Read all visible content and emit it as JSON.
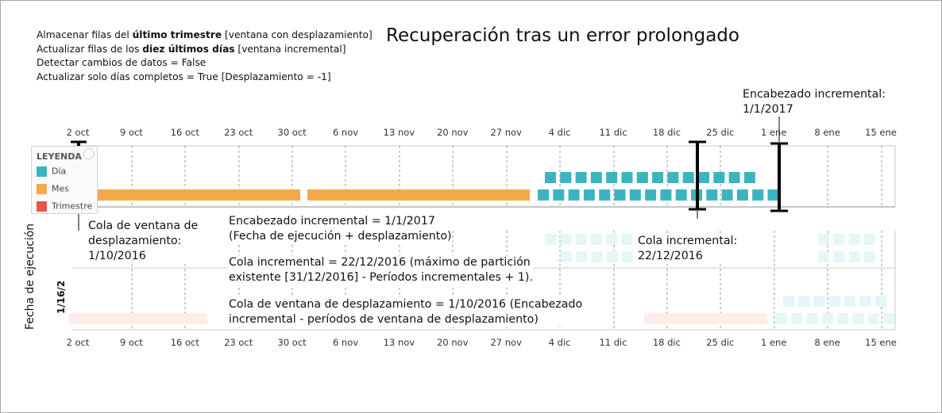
{
  "title": "Recuperación tras un error prolongado",
  "settings": {
    "line1": {
      "pre": "Almacenar filas del ",
      "bold": "último trimestre",
      "post": " [ventana con desplazamiento]"
    },
    "line2": {
      "pre": "Actualizar filas de los ",
      "bold": "diez últimos días",
      "post": " [ventana incremental]"
    },
    "line3": "Detectar cambios de datos = False",
    "line4": "Actualizar solo días completos = True [Desplazamiento = -1]"
  },
  "axis": {
    "ticks": [
      "2 oct",
      "9 oct",
      "16 oct",
      "23 oct",
      "30 oct",
      "6 nov",
      "13 nov",
      "20 nov",
      "27 nov",
      "4 dic",
      "11 dic",
      "18 dic",
      "25 dic",
      "1 ene",
      "8 ene",
      "15 ene"
    ],
    "ylabel": "Fecha de ejecución",
    "run_date": "1/16/2"
  },
  "legend": {
    "title": "LEYENDA",
    "items": [
      {
        "label": "Día",
        "color": "#3db3c1"
      },
      {
        "label": "Mes",
        "color": "#f2a94b"
      },
      {
        "label": "Trimestre",
        "color": "#e8554e"
      }
    ]
  },
  "annotations": {
    "incremental_head_top": [
      "Encabezado incremental:",
      "1/1/2017"
    ],
    "rolling_tail_label": [
      "Cola de ventana de",
      "desplazamiento:",
      "1/10/2016"
    ],
    "head_formula": [
      "Encabezado incremental = 1/1/2017",
      "(Fecha de ejecución + desplazamiento)"
    ],
    "tail_formula": [
      "Cola incremental = 22/12/2016 (máximo de partición",
      "existente [31/12/2016] - Períodos incrementales + 1)."
    ],
    "rolling_formula": [
      "Cola de ventana de desplazamiento = 1/10/2016 (Encabezado",
      "incremental - períodos de ventana de desplazamiento)"
    ],
    "incremental_tail_label": [
      "Cola incremental:",
      "22/12/2016"
    ]
  },
  "colors": {
    "day": "#3db3c1",
    "month": "#f2a94b",
    "quarter": "#e8554e",
    "gridline": "#9a9a9a",
    "marker": "#000000"
  }
}
